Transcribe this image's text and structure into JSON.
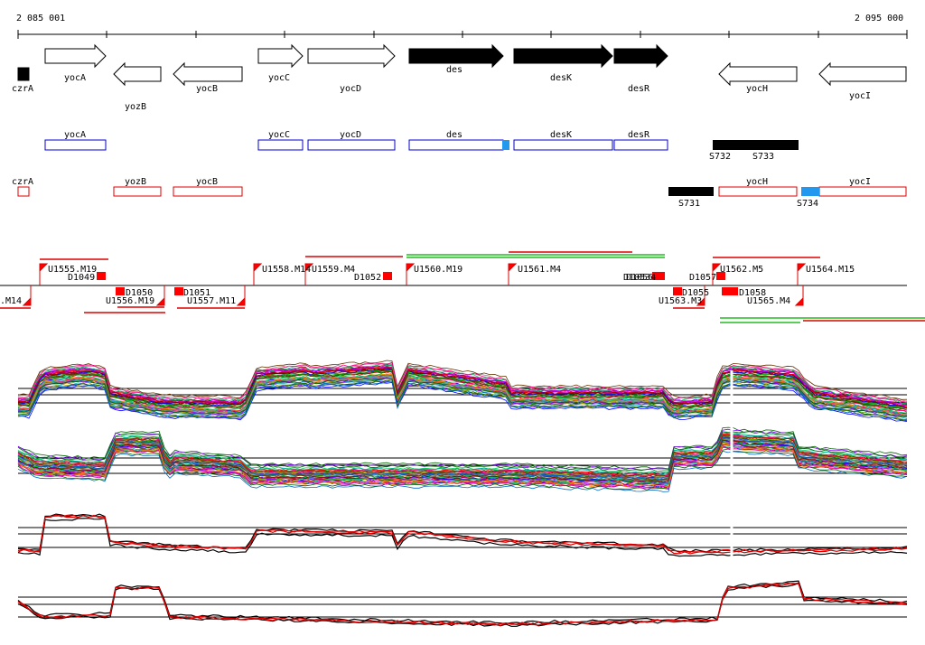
{
  "coords": {
    "start_label": "2 085 001",
    "end_label": "2 095 000"
  },
  "genes": {
    "czrA": "czrA",
    "yocA": "yocA",
    "yozB": "yozB",
    "yocB": "yocB",
    "yocC": "yocC",
    "yocD": "yocD",
    "des": "des",
    "desK": "desK",
    "desR": "desR",
    "yocH": "yocH",
    "yocI": "yocI"
  },
  "segments": {
    "s731": "S731",
    "s732": "S732",
    "s733": "S733",
    "s734": "S734"
  },
  "peaks": {
    "m14": ".M14",
    "u1555": "U1555.M19",
    "d1049": "D1049",
    "d1050": "D1050",
    "u1556": "U1556.M19",
    "d1051": "D1051",
    "u1557": "U1557.M11",
    "u1558": "U1558.M14",
    "u1559": "U1559.M4",
    "d1052": "D1052",
    "u1560": "U1560.M19",
    "u1561": "U1561.M4",
    "d1053_54": "D10534",
    "d1056": "D1056",
    "d1057": "D1057",
    "d1055": "D1055",
    "u1563": "U1563.M3",
    "u1562": "U1562.M5",
    "d1058": "D1058",
    "u1565": "U1565.M4",
    "u1564": "U1564.M15"
  },
  "colors": {
    "gene_outline_plus": "#0000cc",
    "gene_outline_minus": "#dd0000",
    "signal_red": "#ff0000",
    "signal_green": "#22bb22",
    "sigma_blue": "#2299ee"
  }
}
